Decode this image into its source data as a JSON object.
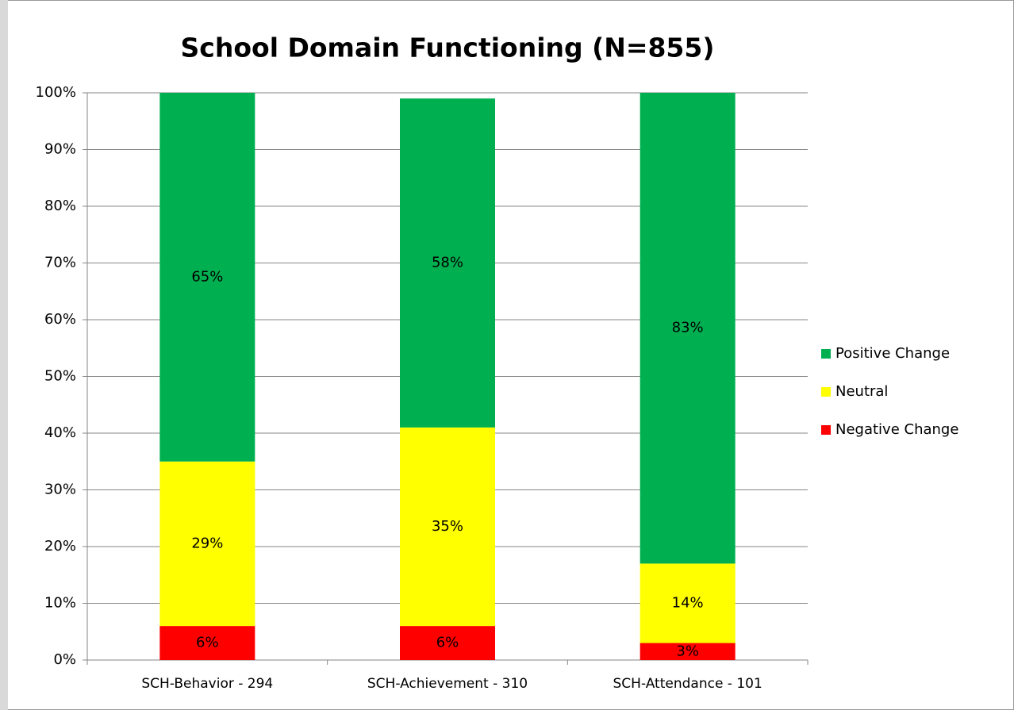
{
  "chart_data": {
    "type": "stacked_bar",
    "title": "School Domain Functioning (N=855)",
    "categories": [
      "SCH-Behavior - 294",
      "SCH-Achievement - 310",
      "SCH-Attendance - 101"
    ],
    "series": [
      {
        "name": "Positive Change",
        "color": "#00b050",
        "values": [
          65,
          58,
          83
        ],
        "value_labels": [
          "65%",
          "58%",
          "83%"
        ]
      },
      {
        "name": "Neutral",
        "color": "#ffff00",
        "values": [
          29,
          35,
          14
        ],
        "value_labels": [
          "29%",
          "35%",
          "14%"
        ]
      },
      {
        "name": "Negative Change",
        "color": "#ff0000",
        "values": [
          6,
          6,
          3
        ],
        "value_labels": [
          "6%",
          "6%",
          "3%"
        ]
      }
    ],
    "ylim": [
      0,
      100
    ],
    "yticks": [
      {
        "value": 0,
        "label": "0%"
      },
      {
        "value": 10,
        "label": "10%"
      },
      {
        "value": 20,
        "label": "20%"
      },
      {
        "value": 30,
        "label": "30%"
      },
      {
        "value": 40,
        "label": "40%"
      },
      {
        "value": 50,
        "label": "50%"
      },
      {
        "value": 60,
        "label": "60%"
      },
      {
        "value": 70,
        "label": "70%"
      },
      {
        "value": 80,
        "label": "80%"
      },
      {
        "value": 90,
        "label": "90%"
      },
      {
        "value": 100,
        "label": "100%"
      }
    ],
    "grid": true,
    "legend": "right"
  }
}
